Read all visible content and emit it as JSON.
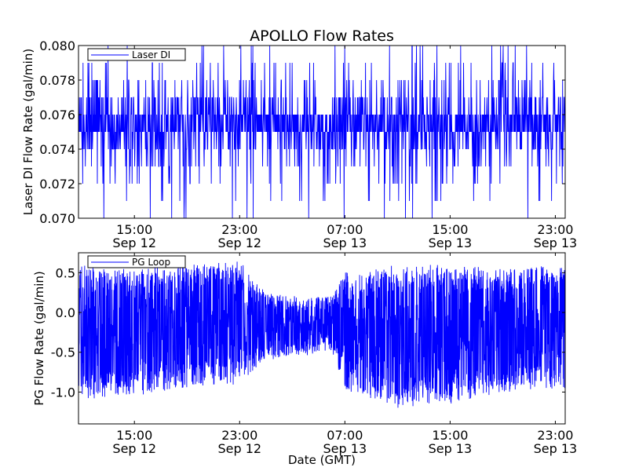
{
  "chart_data": [
    {
      "type": "line",
      "title": "APOLLO Flow Rates",
      "ylabel": "Laser DI Flow Rate (gal/min)",
      "xlabel": "",
      "x_range": [
        "Sep 12 10:45",
        "Sep 13 23:45"
      ],
      "ylim": [
        0.07,
        0.08
      ],
      "yticks": [
        "0.070",
        "0.072",
        "0.074",
        "0.076",
        "0.078",
        "0.080"
      ],
      "xticks": [
        {
          "time": "15:00",
          "date": "Sep 12"
        },
        {
          "time": "23:00",
          "date": "Sep 12"
        },
        {
          "time": "07:00",
          "date": "Sep 13"
        },
        {
          "time": "15:00",
          "date": "Sep 13"
        },
        {
          "time": "23:00",
          "date": "Sep 13"
        }
      ],
      "legend_placement": "top-left",
      "grid": false,
      "series": [
        {
          "name": "Laser DI",
          "color": "#0000ff",
          "typical_range": [
            0.075,
            0.076
          ],
          "mean": 0.0755,
          "min": 0.07,
          "max": 0.08
        }
      ]
    },
    {
      "type": "line",
      "title": "",
      "ylabel": "PG Flow Rate (gal/min)",
      "xlabel": "Date (GMT)",
      "x_range": [
        "Sep 12 10:45",
        "Sep 13 23:45"
      ],
      "ylim": [
        -1.4,
        0.75
      ],
      "yticks": [
        "-1.0",
        "-0.5",
        "0.0",
        "0.5"
      ],
      "xticks": [
        {
          "time": "15:00",
          "date": "Sep 12"
        },
        {
          "time": "23:00",
          "date": "Sep 12"
        },
        {
          "time": "07:00",
          "date": "Sep 13"
        },
        {
          "time": "15:00",
          "date": "Sep 13"
        },
        {
          "time": "23:00",
          "date": "Sep 13"
        }
      ],
      "legend_placement": "top-left",
      "grid": false,
      "series": [
        {
          "name": "PG Loop",
          "color": "#0000ff",
          "envelope": [
            {
              "x": "Sep 12 10:45",
              "min": -1.1,
              "max": 0.6
            },
            {
              "x": "Sep 12 15:00",
              "min": -1.05,
              "max": 0.55
            },
            {
              "x": "Sep 12 19:00",
              "min": -0.95,
              "max": 0.6
            },
            {
              "x": "Sep 12 23:00",
              "min": -0.9,
              "max": 0.65
            },
            {
              "x": "Sep 13 01:00",
              "min": -0.6,
              "max": 0.25
            },
            {
              "x": "Sep 13 03:30",
              "min": -0.55,
              "max": 0.2
            },
            {
              "x": "Sep 13 06:00",
              "min": -0.5,
              "max": 0.2
            },
            {
              "x": "Sep 13 07:00",
              "min": -1.0,
              "max": 0.55
            },
            {
              "x": "Sep 13 11:00",
              "min": -1.2,
              "max": 0.6
            },
            {
              "x": "Sep 13 15:00",
              "min": -1.15,
              "max": 0.6
            },
            {
              "x": "Sep 13 19:00",
              "min": -1.0,
              "max": 0.55
            },
            {
              "x": "Sep 13 23:45",
              "min": -0.95,
              "max": 0.6
            }
          ]
        }
      ]
    }
  ]
}
